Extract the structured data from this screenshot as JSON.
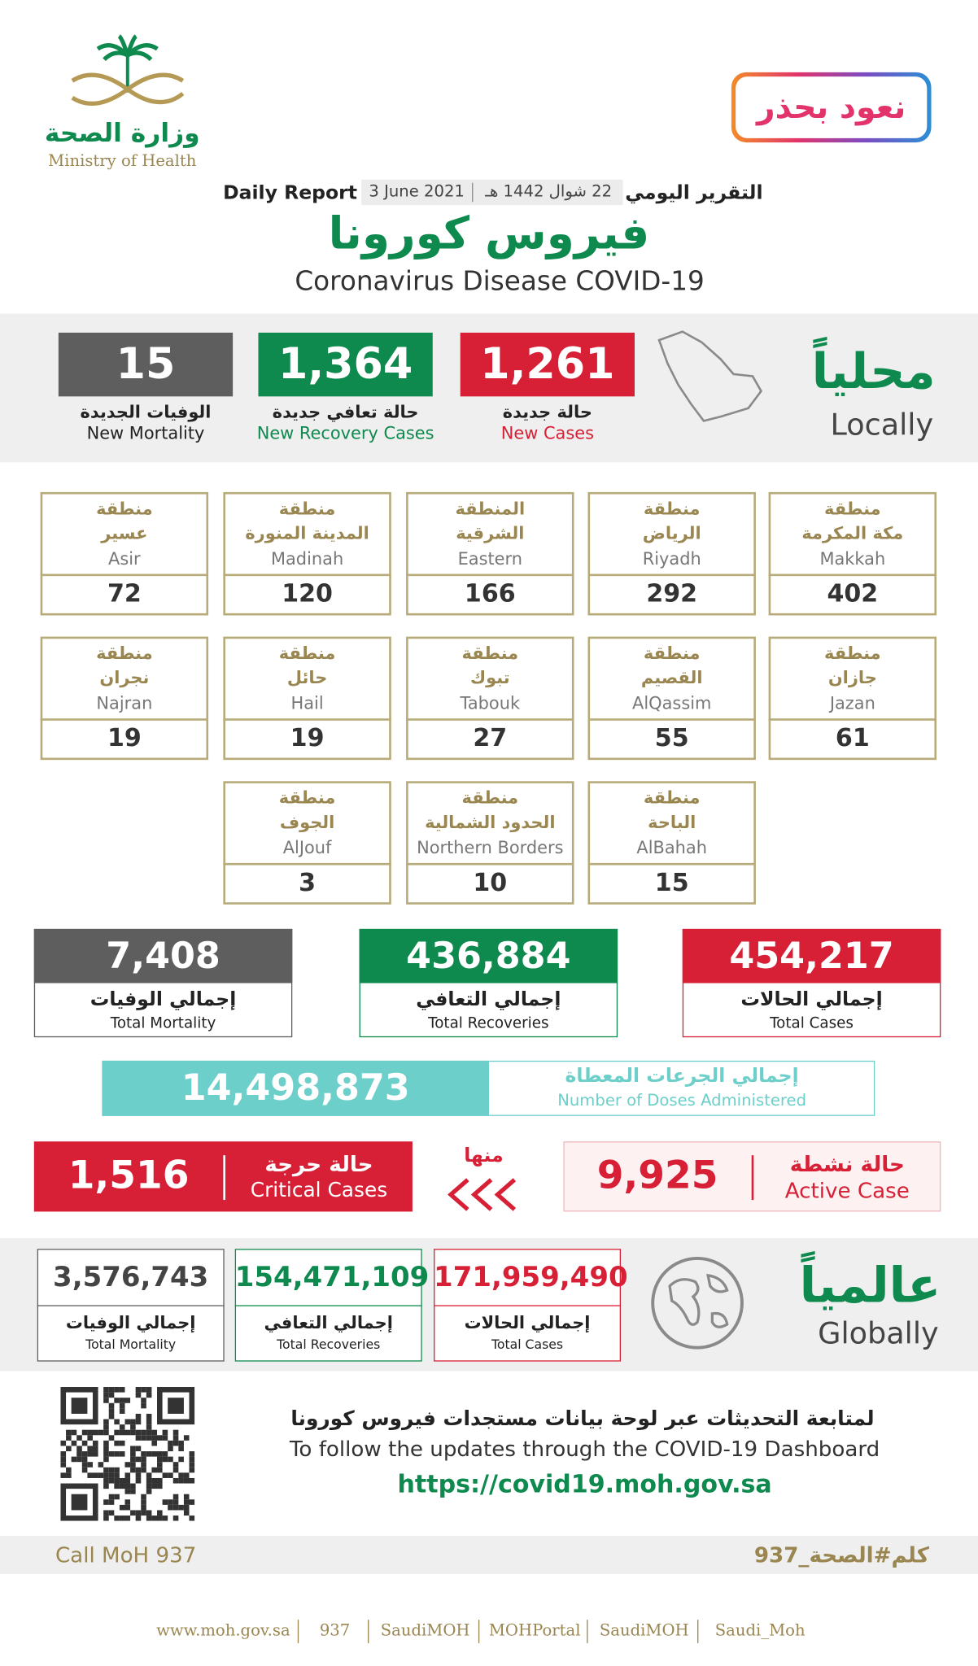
{
  "header": {
    "ministry_ar": "وزارة الصحة",
    "ministry_en": "Ministry of Health",
    "slogan": "نعود بحذر",
    "report_ar": "التقرير اليومي",
    "date_hijri": "22 شوال 1442 هـ",
    "date": "3 June 2021",
    "report_en": "Daily Report",
    "title_ar": "فيروس كورونا",
    "title_en": "Coronavirus Disease COVID-19"
  },
  "local": {
    "label_ar": "محلياً",
    "label_en": "Locally",
    "stats": [
      {
        "value": "1,261",
        "label_ar": "حالة جديدة",
        "label_en": "New Cases"
      },
      {
        "value": "1,364",
        "label_ar": "حالة تعافي جديدة",
        "label_en": "New Recovery Cases"
      },
      {
        "value": "15",
        "label_ar": "الوفيات الجديدة",
        "label_en": "New Mortality"
      }
    ]
  },
  "regions": [
    {
      "line1": "منطقة",
      "line2": "مكة المكرمة",
      "name_en": "Makkah",
      "value": "402"
    },
    {
      "line1": "منطقة",
      "line2": "الرياض",
      "name_en": "Riyadh",
      "value": "292"
    },
    {
      "line1": "المنطقة",
      "line2": "الشرقية",
      "name_en": "Eastern",
      "value": "166"
    },
    {
      "line1": "منطقة",
      "line2": "المدينة المنورة",
      "name_en": "Madinah",
      "value": "120"
    },
    {
      "line1": "منطقة",
      "line2": "عسير",
      "name_en": "Asir",
      "value": "72"
    },
    {
      "line1": "منطقة",
      "line2": "جازان",
      "name_en": "Jazan",
      "value": "61"
    },
    {
      "line1": "منطقة",
      "line2": "القصيم",
      "name_en": "AlQassim",
      "value": "55"
    },
    {
      "line1": "منطقة",
      "line2": "تبوك",
      "name_en": "Tabouk",
      "value": "27"
    },
    {
      "line1": "منطقة",
      "line2": "حائل",
      "name_en": "Hail",
      "value": "19"
    },
    {
      "line1": "منطقة",
      "line2": "نجران",
      "name_en": "Najran",
      "value": "19"
    },
    {
      "line1": "منطقة",
      "line2": "الباحة",
      "name_en": "AlBahah",
      "value": "15"
    },
    {
      "line1": "منطقة",
      "line2": "الحدود الشمالية",
      "name_en": "Northern Borders",
      "value": "10"
    },
    {
      "line1": "منطقة",
      "line2": "الجوف",
      "name_en": "AlJouf",
      "value": "3"
    }
  ],
  "totals": [
    {
      "value": "454,217",
      "label_ar": "إجمالي الحالات",
      "label_en": "Total Cases"
    },
    {
      "value": "436,884",
      "label_ar": "إجمالي التعافي",
      "label_en": "Total Recoveries"
    },
    {
      "value": "7,408",
      "label_ar": "إجمالي الوفيات",
      "label_en": "Total Mortality"
    }
  ],
  "doses": {
    "value": "14,498,873",
    "label_ar": "إجمالي الجرعات المعطاة",
    "label_en": "Number of Doses Administered"
  },
  "active": {
    "label_ar": "حالة نشطة",
    "label_en": "Active Case",
    "value": "9,925"
  },
  "of_which": "منها",
  "critical": {
    "label_ar": "حالة حرجة",
    "label_en": "Critical Cases",
    "value": "1,516"
  },
  "global": {
    "label_ar": "عالمياً",
    "label_en": "Globally",
    "stats": [
      {
        "value": "171,959,490",
        "label_ar": "إجمالي الحالات",
        "label_en": "Total Cases"
      },
      {
        "value": "154,471,109",
        "label_ar": "إجمالي التعافي",
        "label_en": "Total Recoveries"
      },
      {
        "value": "3,576,743",
        "label_ar": "إجمالي الوفيات",
        "label_en": "Total Mortality"
      }
    ]
  },
  "footer": {
    "note_ar": "لمتابعة التحديثات عبر لوحة بيانات مستجدات فيروس كورونا",
    "note_en": "To follow the updates through the COVID-19 Dashboard",
    "url": "https://covid19.moh.gov.sa",
    "call": "Call MoH 937",
    "hashtag": "كلم#الصحة_937",
    "links": [
      "www.moh.gov.sa",
      "937",
      "SaudiMOH",
      "MOHPortal",
      "SaudiMOH",
      "Saudi_Moh"
    ]
  }
}
